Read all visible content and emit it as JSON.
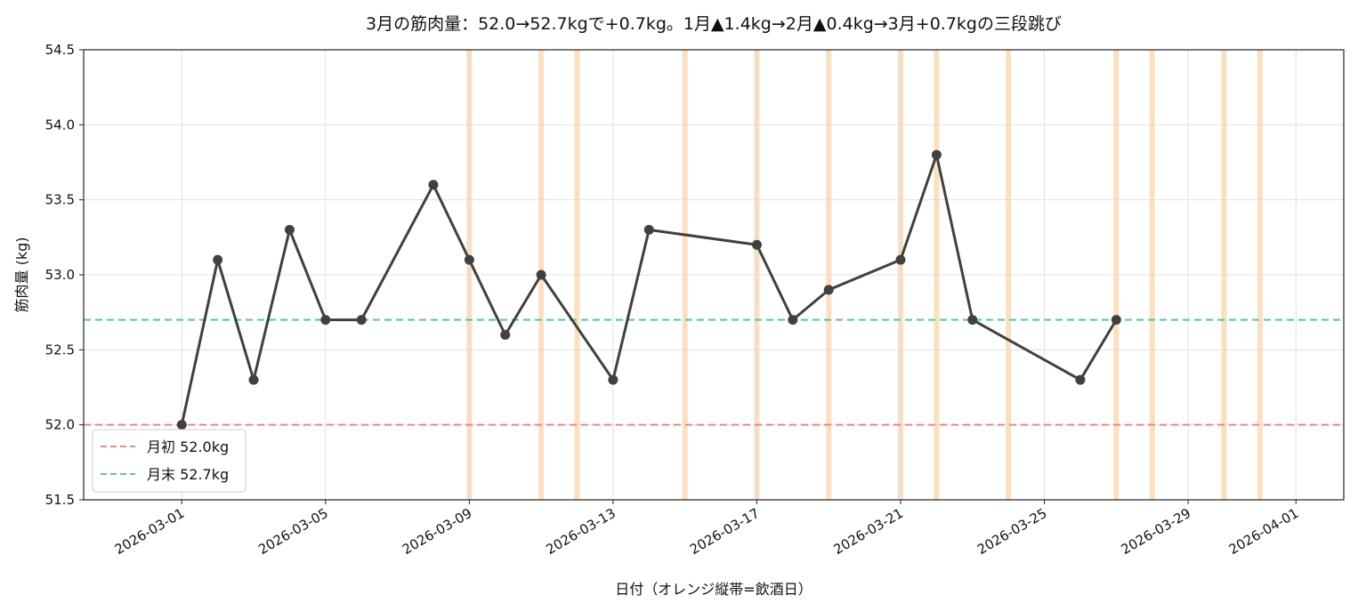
{
  "chart_data": {
    "type": "line",
    "title": "3月の筋肉量：52.0→52.7kgで+0.7kg。1月▲1.4kg→2月▲0.4kg→3月+0.7kgの三段跳び",
    "xlabel": "日付（オレンジ縦帯=飲酒日）",
    "ylabel": "筋肉量 (kg)",
    "ylim": [
      51.5,
      54.5
    ],
    "yticks": [
      "51.5",
      "52.0",
      "52.5",
      "53.0",
      "53.5",
      "54.0",
      "54.5"
    ],
    "xticks": [
      "2026-03-01",
      "2026-03-05",
      "2026-03-09",
      "2026-03-13",
      "2026-03-17",
      "2026-03-21",
      "2026-03-25",
      "2026-03-29",
      "2026-04-01"
    ],
    "grid": true,
    "series": [
      {
        "x": [
          "2026-03-01",
          "2026-03-02",
          "2026-03-03",
          "2026-03-04",
          "2026-03-05",
          "2026-03-06",
          "2026-03-08",
          "2026-03-09",
          "2026-03-10",
          "2026-03-11",
          "2026-03-13",
          "2026-03-14",
          "2026-03-17",
          "2026-03-18",
          "2026-03-19",
          "2026-03-21",
          "2026-03-22",
          "2026-03-23",
          "2026-03-26",
          "2026-03-27"
        ],
        "values": [
          52.0,
          53.1,
          52.3,
          53.3,
          52.7,
          52.7,
          53.6,
          53.1,
          52.6,
          53.0,
          52.3,
          53.3,
          53.2,
          52.7,
          52.9,
          53.1,
          53.8,
          52.7,
          52.3,
          52.7
        ],
        "color": "#404040"
      }
    ],
    "drinking_days": [
      "2026-03-09",
      "2026-03-11",
      "2026-03-12",
      "2026-03-15",
      "2026-03-17",
      "2026-03-19",
      "2026-03-21",
      "2026-03-22",
      "2026-03-24",
      "2026-03-27",
      "2026-03-28",
      "2026-03-30",
      "2026-03-31"
    ],
    "reference_lines": [
      {
        "label": "月初 52.0kg",
        "value": 52.0,
        "color": "#e8877f"
      },
      {
        "label": "月末 52.7kg",
        "value": 52.7,
        "color": "#5bc4a0"
      }
    ],
    "legend_position": "lower-left",
    "band_color": "#f5c48e",
    "grid_color": "#e0e0e0"
  }
}
